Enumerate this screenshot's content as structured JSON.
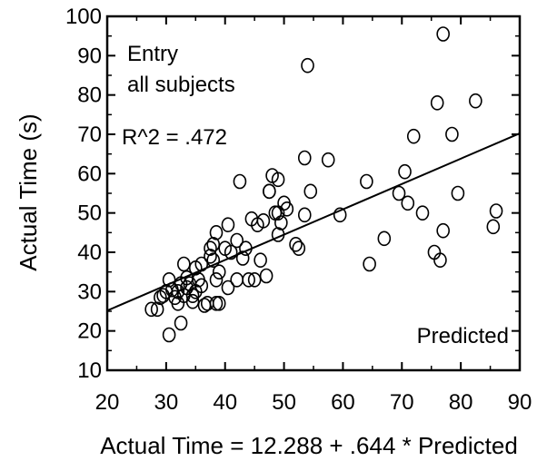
{
  "chart_data": {
    "type": "scatter",
    "title": "",
    "xlabel": "Actual Time = 12.288 + .644 * Predicted",
    "ylabel": "Actual Time (s)",
    "xlim": [
      20,
      90
    ],
    "ylim": [
      10,
      100
    ],
    "xticks": [
      "20",
      "30",
      "40",
      "50",
      "60",
      "70",
      "80",
      "90"
    ],
    "yticks": [
      "10",
      "20",
      "30",
      "40",
      "50",
      "60",
      "70",
      "80",
      "90",
      "100"
    ],
    "grid": false,
    "annotations": {
      "group": "Entry",
      "subset": "all subjects",
      "r_squared": "R^2 = .472",
      "corner_label": "Predicted"
    },
    "fit_line": {
      "intercept": 12.288,
      "slope": 0.644
    },
    "points": [
      [
        27.5,
        25.5
      ],
      [
        28.5,
        25.5
      ],
      [
        29,
        28.5
      ],
      [
        29.5,
        29
      ],
      [
        30,
        30
      ],
      [
        30.5,
        33
      ],
      [
        30.5,
        19
      ],
      [
        31,
        30.5
      ],
      [
        31.5,
        28.5
      ],
      [
        32,
        30
      ],
      [
        32,
        27
      ],
      [
        32.5,
        32
      ],
      [
        32.5,
        22
      ],
      [
        33,
        37
      ],
      [
        33,
        29
      ],
      [
        33.5,
        31
      ],
      [
        33.5,
        33.5
      ],
      [
        34,
        32
      ],
      [
        34.5,
        29
      ],
      [
        34.5,
        27.5
      ],
      [
        35,
        30
      ],
      [
        35,
        36
      ],
      [
        35.5,
        33
      ],
      [
        36,
        31.5
      ],
      [
        36,
        37
      ],
      [
        36.5,
        26.5
      ],
      [
        37,
        27
      ],
      [
        37.5,
        41
      ],
      [
        37.5,
        39
      ],
      [
        38,
        42
      ],
      [
        38,
        38
      ],
      [
        38.5,
        33
      ],
      [
        38.5,
        45
      ],
      [
        38.5,
        27
      ],
      [
        39,
        35
      ],
      [
        39,
        27
      ],
      [
        40,
        41
      ],
      [
        40.5,
        31
      ],
      [
        40.5,
        47
      ],
      [
        41,
        40
      ],
      [
        42,
        33
      ],
      [
        42,
        43
      ],
      [
        42.5,
        58
      ],
      [
        43,
        38.5
      ],
      [
        43.5,
        41
      ],
      [
        44,
        33
      ],
      [
        44.5,
        48.5
      ],
      [
        45,
        33
      ],
      [
        45.5,
        47
      ],
      [
        46,
        38
      ],
      [
        46.5,
        48
      ],
      [
        47,
        34
      ],
      [
        47.5,
        55.5
      ],
      [
        47.5,
        55.5
      ],
      [
        48,
        59.5
      ],
      [
        48.5,
        50
      ],
      [
        49,
        50
      ],
      [
        49,
        58.5
      ],
      [
        49,
        44.5
      ],
      [
        49.5,
        47.5
      ],
      [
        50,
        52.5
      ],
      [
        50.5,
        51
      ],
      [
        52,
        42
      ],
      [
        52.5,
        41
      ],
      [
        53.5,
        64
      ],
      [
        53.5,
        49.5
      ],
      [
        54,
        87.5
      ],
      [
        54.5,
        55.5
      ],
      [
        57.5,
        63.5
      ],
      [
        59.5,
        49.5
      ],
      [
        64,
        58
      ],
      [
        64.5,
        37
      ],
      [
        67,
        43.5
      ],
      [
        69.5,
        55
      ],
      [
        70.5,
        60.5
      ],
      [
        71,
        52.5
      ],
      [
        72,
        69.5
      ],
      [
        73.5,
        50
      ],
      [
        75.5,
        40
      ],
      [
        76,
        78
      ],
      [
        76.5,
        38
      ],
      [
        77,
        95.5
      ],
      [
        77,
        45.5
      ],
      [
        78.5,
        70
      ],
      [
        79.5,
        55
      ],
      [
        82.5,
        78.5
      ],
      [
        85.5,
        46.5
      ],
      [
        86,
        50.5
      ]
    ]
  }
}
